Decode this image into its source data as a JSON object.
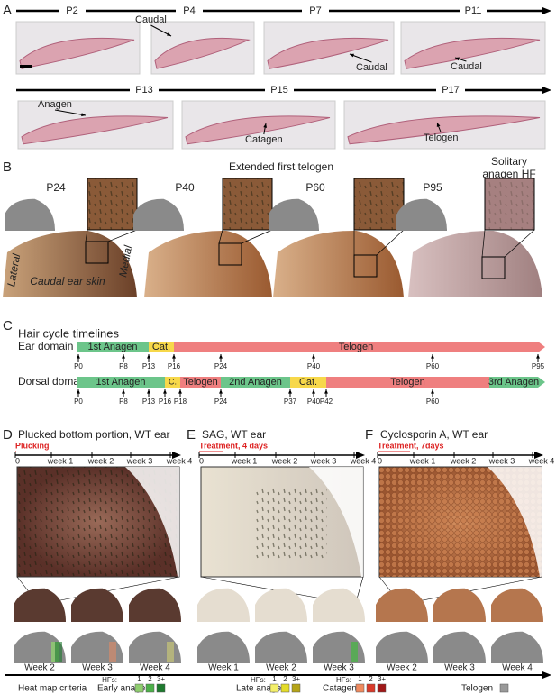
{
  "panel_a": {
    "letter": "A",
    "row1": [
      "P2",
      "P4",
      "P7",
      "P11"
    ],
    "row2": [
      "P13",
      "P15",
      "P17"
    ],
    "annotations": [
      "Caudal",
      "Caudal",
      "Caudal",
      "Anagen",
      "Catagen",
      "Telogen"
    ]
  },
  "panel_b": {
    "letter": "B",
    "heading": "Extended first telogen",
    "timepoints": [
      "P24",
      "P40",
      "P60",
      "P95"
    ],
    "note": [
      "Solitary",
      "anagen HF"
    ],
    "lateral": "Lateral",
    "medial": "Medial",
    "caption": "Caudal ear skin"
  },
  "panel_c": {
    "letter": "C",
    "title": "Hair cycle timelines",
    "ear": {
      "label": "Ear domain",
      "segments": [
        "1st Anagen",
        "Cat.",
        "Telogen"
      ],
      "ticks": [
        "P0",
        "P8",
        "P13",
        "P16",
        "P24",
        "P40",
        "P60",
        "P95"
      ]
    },
    "dorsal": {
      "label": "Dorsal domain",
      "segments": [
        "1st Anagen",
        "C.",
        "Telogen",
        "2nd Anagen",
        "Cat.",
        "Telogen",
        "3rd Anagen"
      ],
      "ticks": [
        "P0",
        "P8",
        "P13",
        "P16",
        "P18",
        "P24",
        "P37",
        "P40",
        "P42",
        "P60"
      ]
    }
  },
  "panel_d": {
    "letter": "D",
    "title": "Plucked bottom portion, WT ear",
    "treatment": "Plucking",
    "axis": [
      "0",
      "week 1",
      "week 2",
      "week 3",
      "week 4"
    ],
    "heatmaps": [
      "Week 2",
      "Week 3",
      "Week 4"
    ]
  },
  "panel_e": {
    "letter": "E",
    "title": "SAG, WT ear",
    "treatment": "Treatment, 4 days",
    "axis": [
      "0",
      "week 1",
      "week 2",
      "week 3",
      "week 4"
    ],
    "heatmaps": [
      "Week 1",
      "Week 2",
      "Week 3"
    ]
  },
  "panel_f": {
    "letter": "F",
    "title": "Cyclosporin A, WT ear",
    "treatment": "Treatment, 7days",
    "axis": [
      "0",
      "week 1",
      "week 2",
      "week 3",
      "week 4"
    ],
    "heatmaps": [
      "Week 2",
      "Week 3",
      "Week 4"
    ]
  },
  "legend": {
    "title": "Heat map criteria",
    "groups": [
      {
        "name": "Early anagen",
        "hfs": "HFs:",
        "counts": [
          "1",
          "2",
          "3+"
        ]
      },
      {
        "name": "Late anagen",
        "hfs": "HFs:",
        "counts": [
          "1",
          "2",
          "3+"
        ]
      },
      {
        "name": "Catagen",
        "hfs": "HFs:",
        "counts": [
          "1",
          "2",
          "3+"
        ]
      },
      {
        "name": "Telogen"
      }
    ]
  }
}
